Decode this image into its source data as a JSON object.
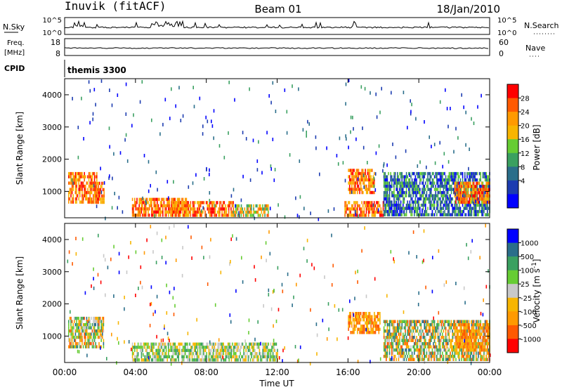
{
  "header": {
    "station": "Inuvik  (fitACF)",
    "beam": "Beam 01",
    "date": "18/Jan/2010"
  },
  "summary": {
    "nsky_label": "N.Sky",
    "nsearch_label": "N.Search",
    "freq_label": "Freq.",
    "freq_unit": "[MHz]",
    "nave_label": "Nave",
    "cpid_label": "CPID",
    "cpid_value": "themis 3300",
    "nsky_ticks": [
      "10^5",
      "10^0"
    ],
    "nsearch_ticks": [
      "10^5",
      "10^0"
    ],
    "freq_ticks": [
      "18",
      "8"
    ],
    "nave_ticks": [
      "60",
      "0"
    ]
  },
  "chart_data": [
    {
      "type": "heatmap",
      "name": "power",
      "xlabel": "",
      "ylabel": "Slant Range [km]",
      "xlim": [
        0,
        24
      ],
      "ylim": [
        180,
        4500
      ],
      "yticks": [
        1000,
        2000,
        3000,
        4000
      ],
      "colorbar": {
        "label": "Power [dB]",
        "ticks": [
          "28",
          "24",
          "20",
          "16",
          "12",
          "8",
          "4"
        ],
        "colors": [
          "#ff0000",
          "#ff5a00",
          "#ff9a00",
          "#f7b500",
          "#66cc33",
          "#3aa060",
          "#2a6e8a",
          "#1c3cb0",
          "#0000ff"
        ]
      },
      "regions": [
        {
          "t": [
            0.2,
            1.8
          ],
          "r": [
            700,
            1600
          ],
          "level": "high"
        },
        {
          "t": [
            1.5,
            2.2
          ],
          "r": [
            700,
            1300
          ],
          "level": "high"
        },
        {
          "t": [
            3.8,
            7.0
          ],
          "r": [
            250,
            800
          ],
          "level": "high"
        },
        {
          "t": [
            6.0,
            9.5
          ],
          "r": [
            250,
            700
          ],
          "level": "high"
        },
        {
          "t": [
            9.5,
            11.5
          ],
          "r": [
            250,
            600
          ],
          "level": "mid"
        },
        {
          "t": [
            15.8,
            18.0
          ],
          "r": [
            250,
            700
          ],
          "level": "high"
        },
        {
          "t": [
            16.0,
            17.5
          ],
          "r": [
            1000,
            1700
          ],
          "level": "high"
        },
        {
          "t": [
            18.0,
            24.0
          ],
          "r": [
            300,
            1600
          ],
          "level": "low"
        },
        {
          "t": [
            22.0,
            24.0
          ],
          "r": [
            700,
            1300
          ],
          "level": "high"
        }
      ]
    },
    {
      "type": "heatmap",
      "name": "velocity",
      "xlabel": "Time UT",
      "ylabel": "Slant Range [km]",
      "xlim": [
        0,
        24
      ],
      "ylim": [
        180,
        4500
      ],
      "xticks": [
        "00:00",
        "04:00",
        "08:00",
        "12:00",
        "16:00",
        "20:00",
        "00:00"
      ],
      "yticks": [
        1000,
        2000,
        3000,
        4000
      ],
      "colorbar": {
        "label": "Velocity [m s^-1]",
        "ticks": [
          "1000",
          "500",
          "100",
          "25",
          "-25",
          "-100",
          "-500",
          "-1000"
        ],
        "colors": [
          "#0000ff",
          "#2a6e8a",
          "#3aa060",
          "#66cc33",
          "#c8c8c8",
          "#f7b500",
          "#ff9a00",
          "#ff5a00",
          "#ff0000"
        ]
      },
      "regions": [
        {
          "t": [
            0.2,
            2.2
          ],
          "r": [
            700,
            1600
          ],
          "level": "mixed"
        },
        {
          "t": [
            3.8,
            12.0
          ],
          "r": [
            250,
            800
          ],
          "level": "positive"
        },
        {
          "t": [
            16.0,
            17.8
          ],
          "r": [
            1100,
            1750
          ],
          "level": "negative"
        },
        {
          "t": [
            18.0,
            24.0
          ],
          "r": [
            300,
            1500
          ],
          "level": "mixed"
        },
        {
          "t": [
            22.0,
            24.0
          ],
          "r": [
            600,
            1400
          ],
          "level": "negative"
        }
      ]
    }
  ]
}
